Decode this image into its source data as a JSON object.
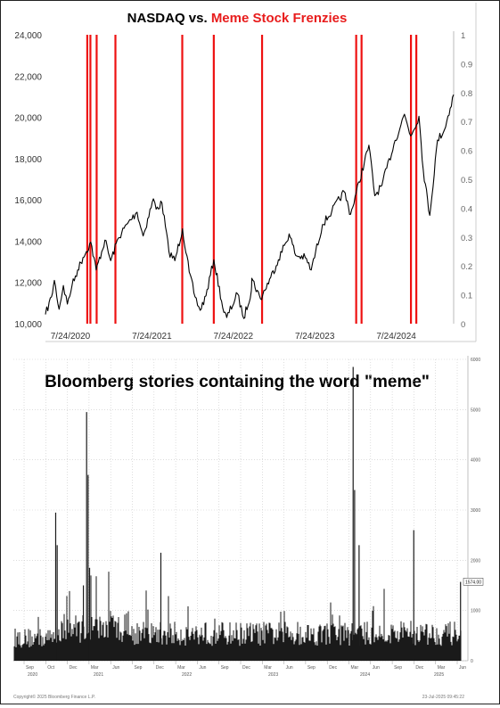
{
  "chart_data": [
    {
      "type": "line",
      "title": {
        "part1": "NASDAQ vs. ",
        "part2": "Meme Stock Frenzies"
      },
      "colors": {
        "line": "#000000",
        "event": "#ee1111",
        "title_highlight": "#e81c1c",
        "axis_text": "#333333"
      },
      "left_yaxis": {
        "ylim": [
          10000,
          24000
        ],
        "ticks": [
          "10,000",
          "12,000",
          "14,000",
          "16,000",
          "18,000",
          "20,000",
          "22,000",
          "24,000"
        ]
      },
      "right_yaxis": {
        "ylim": [
          0,
          1
        ],
        "ticks": [
          "0",
          "0.1",
          "0.2",
          "0.3",
          "0.4",
          "0.5",
          "0.6",
          "0.7",
          "0.8",
          "0.9",
          "1"
        ]
      },
      "xaxis": {
        "range": [
          "2020-07-24",
          "2025-07-24"
        ],
        "ticks": [
          "7/24/2020",
          "7/24/2021",
          "7/24/2022",
          "7/24/2023",
          "7/24/2024"
        ]
      },
      "series": [
        {
          "points": [
            [
              "2020-07-24",
              10450
            ],
            [
              "2020-08-20",
              11300
            ],
            [
              "2020-09-02",
              12100
            ],
            [
              "2020-09-23",
              10700
            ],
            [
              "2020-10-12",
              11850
            ],
            [
              "2020-10-30",
              10950
            ],
            [
              "2020-11-20",
              11850
            ],
            [
              "2020-12-15",
              12600
            ],
            [
              "2021-01-08",
              13200
            ],
            [
              "2021-02-12",
              13950
            ],
            [
              "2021-03-08",
              12600
            ],
            [
              "2021-04-16",
              14050
            ],
            [
              "2021-05-12",
              13050
            ],
            [
              "2021-06-15",
              14150
            ],
            [
              "2021-07-26",
              14850
            ],
            [
              "2021-08-30",
              15300
            ],
            [
              "2021-09-07",
              15400
            ],
            [
              "2021-10-04",
              14250
            ],
            [
              "2021-11-19",
              16050
            ],
            [
              "2021-12-01",
              15550
            ],
            [
              "2021-12-27",
              15850
            ],
            [
              "2022-01-27",
              13500
            ],
            [
              "2022-02-23",
              13050
            ],
            [
              "2022-03-29",
              14600
            ],
            [
              "2022-04-28",
              12500
            ],
            [
              "2022-05-24",
              11300
            ],
            [
              "2022-06-16",
              10650
            ],
            [
              "2022-07-12",
              11350
            ],
            [
              "2022-08-16",
              13100
            ],
            [
              "2022-09-30",
              10550
            ],
            [
              "2022-10-13",
              10300
            ],
            [
              "2022-11-30",
              11450
            ],
            [
              "2022-12-28",
              10250
            ],
            [
              "2023-01-31",
              11600
            ],
            [
              "2023-02-02",
              12200
            ],
            [
              "2023-03-13",
              11200
            ],
            [
              "2023-04-28",
              12250
            ],
            [
              "2023-06-01",
              13100
            ],
            [
              "2023-07-19",
              14350
            ],
            [
              "2023-08-18",
              13300
            ],
            [
              "2023-09-29",
              13200
            ],
            [
              "2023-10-26",
              12600
            ],
            [
              "2023-12-15",
              14800
            ],
            [
              "2024-01-26",
              15450
            ],
            [
              "2024-03-21",
              16400
            ],
            [
              "2024-04-19",
              15300
            ],
            [
              "2024-07-10",
              18650
            ],
            [
              "2024-08-05",
              16200
            ],
            [
              "2024-09-06",
              16700
            ],
            [
              "2024-10-30",
              18700
            ],
            [
              "2024-12-16",
              20150
            ],
            [
              "2025-01-13",
              19100
            ],
            [
              "2025-02-19",
              20050
            ],
            [
              "2025-03-10",
              17450
            ],
            [
              "2025-04-08",
              15250
            ],
            [
              "2025-05-13",
              18900
            ],
            [
              "2025-06-13",
              19400
            ],
            [
              "2025-07-24",
              21100
            ]
          ]
        }
      ],
      "events": [
        "2021-01-27",
        "2021-02-10",
        "2021-03-10",
        "2021-06-02",
        "2022-03-28",
        "2022-08-16",
        "2023-03-20",
        "2024-05-14",
        "2024-06-07",
        "2025-01-14",
        "2025-02-07"
      ]
    },
    {
      "type": "bar",
      "title": "Bloomberg stories containing the word \"meme\"",
      "colors": {
        "bar": "#1a1a1a",
        "grid": "#c8c8c8",
        "axis_text": "#555555"
      },
      "yaxis": {
        "ylim": [
          0,
          6000
        ],
        "ticks": [
          "0",
          "1000",
          "2000",
          "3000",
          "4000",
          "5000",
          "6000"
        ],
        "last_value_label": "1574.00"
      },
      "xaxis": {
        "month_ticks": [
          "Sep",
          "Oct",
          "Dec",
          "Mar",
          "Jun",
          "Sep",
          "Dec",
          "Mar",
          "Jun",
          "Sep",
          "Dec",
          "Mar",
          "Jun",
          "Sep",
          "Dec",
          "Mar",
          "Jun",
          "Sep",
          "Dec",
          "Mar",
          "Jun"
        ],
        "year_ticks": [
          "2020",
          "2021",
          "2022",
          "2023",
          "2024",
          "2025"
        ]
      },
      "baseline_level": 500,
      "spikes": [
        {
          "date": "2021-01-28",
          "value": 2950
        },
        {
          "date": "2021-02-03",
          "value": 2300
        },
        {
          "date": "2021-05-20",
          "value": 1500
        },
        {
          "date": "2021-06-02",
          "value": 4950
        },
        {
          "date": "2021-06-08",
          "value": 3700
        },
        {
          "date": "2021-06-14",
          "value": 1850
        },
        {
          "date": "2022-03-29",
          "value": 2150
        },
        {
          "date": "2024-05-14",
          "value": 5850
        },
        {
          "date": "2024-05-20",
          "value": 3400
        },
        {
          "date": "2024-06-07",
          "value": 2300
        },
        {
          "date": "2025-01-14",
          "value": 2600
        },
        {
          "date": "2025-07-22",
          "value": 1570
        }
      ],
      "footer_left": "Copyright© 2025 Bloomberg Finance L.P.",
      "footer_right": "23-Jul-2025 09:45:22"
    }
  ]
}
